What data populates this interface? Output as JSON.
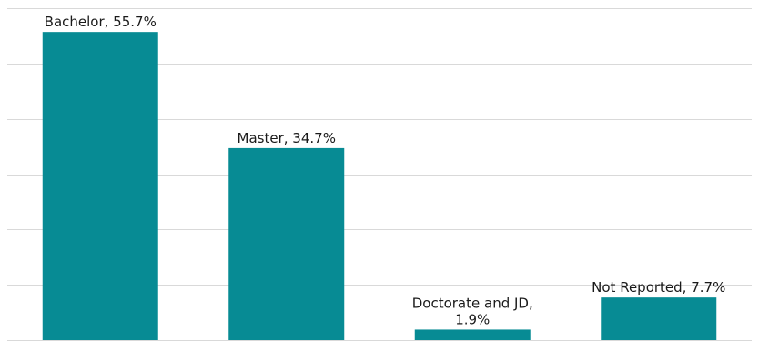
{
  "chart_data": {
    "type": "bar",
    "title": "",
    "xlabel": "",
    "ylabel": "",
    "categories": [
      "Bachelor",
      "Master",
      "Doctorate and JD",
      "Not Reported"
    ],
    "values": [
      55.7,
      34.7,
      1.9,
      7.7
    ],
    "data_labels": [
      [
        "Bachelor, 55.7%"
      ],
      [
        "Master, 34.7%"
      ],
      [
        "Doctorate and JD,",
        "1.9%"
      ],
      [
        "Not Reported, 7.7%"
      ]
    ],
    "ylim": [
      0,
      60
    ],
    "y_gridlines": [
      0,
      10,
      20,
      30,
      40,
      50,
      60
    ],
    "grid": true,
    "legend": "none",
    "colors": {
      "bar": "#078b94",
      "grid": "#d9d9d9",
      "label": "#1a1a1a"
    }
  }
}
